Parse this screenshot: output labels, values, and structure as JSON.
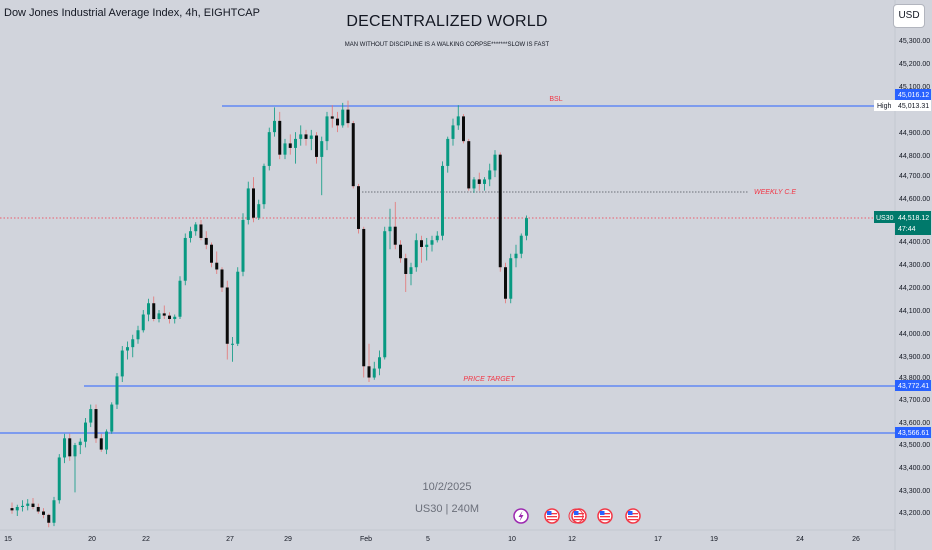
{
  "header": {
    "symbol": "Dow Jones Industrial Average Index, 4h, EIGHTCAP",
    "title": "DECENTRALIZED WORLD",
    "subtitle": "MAN WITHOUT DISCIPLINE IS A WALKING CORPSE*******SLOW IS FAST",
    "currency": "USD"
  },
  "watermark": {
    "date": "10/2/2025",
    "symbol": "US30 | 240M"
  },
  "price_axis": {
    "labels": [
      "45,300.00",
      "45,200.00",
      "45,100.00",
      "44,900.00",
      "44,800.00",
      "44,700.00",
      "44,600.00",
      "44,400.00",
      "44,300.00",
      "44,200.00",
      "44,100.00",
      "44,000.00",
      "43,900.00",
      "43,800.00",
      "43,700.00",
      "43,600.00",
      "43,500.00",
      "43,400.00",
      "43,300.00",
      "43,200.00"
    ]
  },
  "price_tags": {
    "bsl_level": "45,016.12",
    "high_label": "High",
    "high_value": "45,013.31",
    "current_symbol": "US30",
    "current_price": "44,518.12",
    "countdown": "47:44",
    "target_level": "43,772.41",
    "lower_level": "43,566.61"
  },
  "annotations": {
    "bsl": "BSL",
    "weekly_ce": "WEEKLY C.E",
    "price_target": "PRICE TARGET"
  },
  "time_axis": {
    "labels": [
      "15",
      "20",
      "22",
      "27",
      "29",
      "Feb",
      "5",
      "10",
      "12",
      "17",
      "19",
      "24",
      "26"
    ]
  },
  "colors": {
    "background": "#d1d4dc",
    "bull": "#089981",
    "bear": "#0b0b0b",
    "level_line": "#2962ff",
    "annotation": "#f23645",
    "current_tag": "#00796b"
  },
  "event_icons": [
    "flash-icon",
    "us-flag-icon",
    "us-flag-icon",
    "us-flag-icon",
    "us-flag-icon",
    "us-flag-icon"
  ],
  "chart_data": {
    "type": "candlestick",
    "candles": [
      [
        43230,
        43255,
        43205,
        43220
      ],
      [
        43220,
        43245,
        43195,
        43235
      ],
      [
        43235,
        43265,
        43215,
        43240
      ],
      [
        43240,
        43270,
        43220,
        43250
      ],
      [
        43250,
        43275,
        43225,
        43235
      ],
      [
        43235,
        43250,
        43205,
        43215
      ],
      [
        43215,
        43230,
        43185,
        43200
      ],
      [
        43200,
        43205,
        43145,
        43165
      ],
      [
        43165,
        43280,
        43150,
        43265
      ],
      [
        43265,
        43470,
        43250,
        43455
      ],
      [
        43455,
        43560,
        43430,
        43540
      ],
      [
        43540,
        43560,
        43440,
        43460
      ],
      [
        43460,
        43520,
        43300,
        43510
      ],
      [
        43510,
        43540,
        43470,
        43525
      ],
      [
        43525,
        43630,
        43500,
        43610
      ],
      [
        43610,
        43690,
        43590,
        43670
      ],
      [
        43670,
        43690,
        43520,
        43540
      ],
      [
        43540,
        43560,
        43480,
        43490
      ],
      [
        43490,
        43580,
        43470,
        43570
      ],
      [
        43570,
        43700,
        43560,
        43690
      ],
      [
        43690,
        43830,
        43670,
        43815
      ],
      [
        43815,
        43950,
        43790,
        43930
      ],
      [
        43930,
        43970,
        43890,
        43945
      ],
      [
        43945,
        44000,
        43900,
        43980
      ],
      [
        43980,
        44040,
        43960,
        44020
      ],
      [
        44020,
        44110,
        44010,
        44090
      ],
      [
        44090,
        44160,
        44060,
        44140
      ],
      [
        44140,
        44170,
        44060,
        44070
      ],
      [
        44070,
        44110,
        44055,
        44095
      ],
      [
        44095,
        44130,
        44070,
        44085
      ],
      [
        44085,
        44100,
        44050,
        44070
      ],
      [
        44070,
        44090,
        44050,
        44080
      ],
      [
        44080,
        44260,
        44070,
        44240
      ],
      [
        44240,
        44450,
        44220,
        44430
      ],
      [
        44430,
        44480,
        44410,
        44460
      ],
      [
        44460,
        44500,
        44440,
        44490
      ],
      [
        44490,
        44510,
        44420,
        44430
      ],
      [
        44430,
        44460,
        44380,
        44400
      ],
      [
        44400,
        44410,
        44300,
        44320
      ],
      [
        44320,
        44370,
        44270,
        44290
      ],
      [
        44290,
        44300,
        44190,
        44210
      ],
      [
        44210,
        44240,
        43890,
        43960
      ],
      [
        43960,
        43990,
        43880,
        43960
      ],
      [
        43960,
        44300,
        43950,
        44280
      ],
      [
        44280,
        44540,
        44260,
        44510
      ],
      [
        44510,
        44680,
        44490,
        44650
      ],
      [
        44650,
        44700,
        44500,
        44520
      ],
      [
        44520,
        44600,
        44510,
        44580
      ],
      [
        44580,
        44760,
        44560,
        44750
      ],
      [
        44750,
        44920,
        44730,
        44900
      ],
      [
        44900,
        45010,
        44880,
        44950
      ],
      [
        44950,
        44990,
        44780,
        44800
      ],
      [
        44800,
        44870,
        44780,
        44850
      ],
      [
        44850,
        44890,
        44800,
        44830
      ],
      [
        44830,
        44900,
        44760,
        44870
      ],
      [
        44870,
        44930,
        44840,
        44890
      ],
      [
        44890,
        44910,
        44840,
        44870
      ],
      [
        44870,
        44910,
        44820,
        44885
      ],
      [
        44885,
        44900,
        44760,
        44790
      ],
      [
        44790,
        44880,
        44620,
        44860
      ],
      [
        44860,
        44990,
        44820,
        44970
      ],
      [
        44970,
        45020,
        44920,
        44960
      ],
      [
        44960,
        44990,
        44900,
        44930
      ],
      [
        44930,
        45030,
        44920,
        45000
      ],
      [
        45000,
        45040,
        44920,
        44940
      ],
      [
        44940,
        44950,
        44650,
        44660
      ],
      [
        44660,
        44670,
        44450,
        44470
      ],
      [
        44470,
        44480,
        43810,
        43860
      ],
      [
        43860,
        43960,
        43790,
        43810
      ],
      [
        43810,
        43880,
        43800,
        43850
      ],
      [
        43850,
        43930,
        43820,
        43900
      ],
      [
        43900,
        44480,
        43890,
        44460
      ],
      [
        44460,
        44560,
        44380,
        44480
      ],
      [
        44480,
        44590,
        44380,
        44400
      ],
      [
        44400,
        44420,
        44320,
        44340
      ],
      [
        44340,
        44360,
        44190,
        44270
      ],
      [
        44270,
        44320,
        44220,
        44300
      ],
      [
        44300,
        44450,
        44280,
        44420
      ],
      [
        44420,
        44440,
        44320,
        44390
      ],
      [
        44390,
        44430,
        44330,
        44400
      ],
      [
        44400,
        44440,
        44370,
        44420
      ],
      [
        44420,
        44460,
        44410,
        44440
      ],
      [
        44440,
        44770,
        44420,
        44750
      ],
      [
        44750,
        44880,
        44720,
        44870
      ],
      [
        44870,
        44960,
        44840,
        44930
      ],
      [
        44930,
        45020,
        44910,
        44970
      ],
      [
        44970,
        44980,
        44850,
        44860
      ],
      [
        44860,
        44870,
        44640,
        44650
      ],
      [
        44650,
        44700,
        44630,
        44690
      ],
      [
        44690,
        44720,
        44640,
        44670
      ],
      [
        44670,
        44700,
        44640,
        44690
      ],
      [
        44690,
        44760,
        44660,
        44730
      ],
      [
        44730,
        44820,
        44700,
        44800
      ],
      [
        44800,
        44810,
        44280,
        44300
      ],
      [
        44300,
        44320,
        44140,
        44160
      ],
      [
        44160,
        44360,
        44140,
        44340
      ],
      [
        44340,
        44400,
        44300,
        44360
      ],
      [
        44360,
        44450,
        44340,
        44440
      ],
      [
        44440,
        44530,
        44420,
        44518
      ]
    ],
    "levels": [
      {
        "name": "BSL",
        "value": 45016.12
      },
      {
        "name": "WEEKLY C.E",
        "value": 44650
      },
      {
        "name": "PRICE TARGET",
        "value": 43772.41
      },
      {
        "name": "",
        "value": 43566.61
      }
    ],
    "current": 44518.12
  }
}
